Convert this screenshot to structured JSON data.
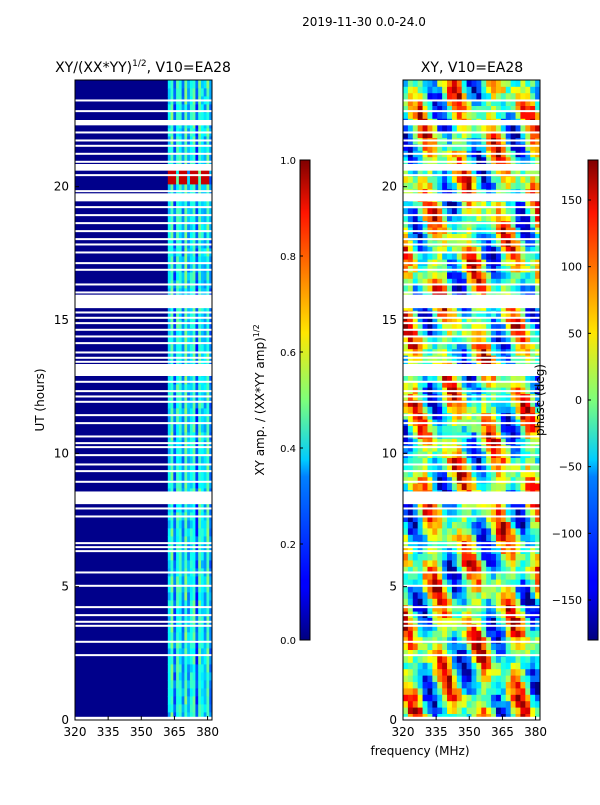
{
  "suptitle": "2019-11-30 0.0-24.0",
  "shared_xlabel": "frequency (MHz)",
  "colors": {
    "background_low": "#00008b",
    "blank": "#ffffff",
    "frame": "#000000"
  },
  "chart_data": [
    {
      "type": "heatmap",
      "title": "XY/(XX*YY)",
      "title_superscript": "1/2",
      "title_suffix": ", V10=EA28",
      "xlabel": "",
      "ylabel": "UT (hours)",
      "xlim": [
        320,
        382
      ],
      "ylim": [
        0,
        24
      ],
      "xticks": [
        320,
        335,
        350,
        365,
        380
      ],
      "yticks": [
        0,
        5,
        10,
        15,
        20
      ],
      "colormap": "jet",
      "colorbar": {
        "label": "XY amp. / (XX*YY amp)",
        "label_superscript": "1/2",
        "range": [
          0.0,
          1.0
        ],
        "ticks": [
          "0.0",
          "0.2",
          "0.4",
          "0.6",
          "0.8",
          "1.0"
        ],
        "tick_values": [
          0.0,
          0.2,
          0.4,
          0.6,
          0.8,
          1.0
        ]
      },
      "blank_hours": [
        0.05,
        2.4,
        2.9,
        3.5,
        3.65,
        3.9,
        4.2,
        5.0,
        5.5,
        6.3,
        6.45,
        6.6,
        7.6,
        7.9,
        8.1,
        8.3,
        8.5,
        8.9,
        9.3,
        9.55,
        9.9,
        10.2,
        10.35,
        10.6,
        11.1,
        11.4,
        11.9,
        12.1,
        12.3,
        12.65,
        12.95,
        13.15,
        13.4,
        13.55,
        13.75,
        14.1,
        14.35,
        14.6,
        14.85,
        15.05,
        15.25,
        15.45,
        15.65,
        15.8,
        16.0,
        16.3,
        16.85,
        17.1,
        17.5,
        17.8,
        18.0,
        18.3,
        18.6,
        18.9,
        19.2,
        19.8,
        20.4,
        20.9,
        21.2,
        21.5,
        21.7,
        22.0,
        22.8,
        23.2
      ],
      "blank_bands": [
        [
          12.9,
          13.35
        ],
        [
          8.1,
          8.55
        ],
        [
          15.5,
          15.95
        ],
        [
          19.45,
          19.75
        ],
        [
          20.6,
          20.85
        ],
        [
          22.3,
          22.5
        ],
        [
          0,
          0.1
        ]
      ],
      "bright_band_mhz": [
        362,
        382
      ]
    },
    {
      "type": "heatmap",
      "title": "XY, V10=EA28",
      "xlabel": "",
      "ylabel": "",
      "xlim": [
        320,
        382
      ],
      "ylim": [
        0,
        24
      ],
      "xticks": [
        320,
        335,
        350,
        365,
        380
      ],
      "yticks": [
        0,
        5,
        10,
        15,
        20
      ],
      "colormap": "jet",
      "colorbar": {
        "label": "phase (deg)",
        "range": [
          -180,
          180
        ],
        "ticks": [
          "−150",
          "−100",
          "−50",
          "0",
          "50",
          "100",
          "150"
        ],
        "tick_values": [
          -150,
          -100,
          -50,
          0,
          50,
          100,
          150
        ]
      }
    }
  ]
}
